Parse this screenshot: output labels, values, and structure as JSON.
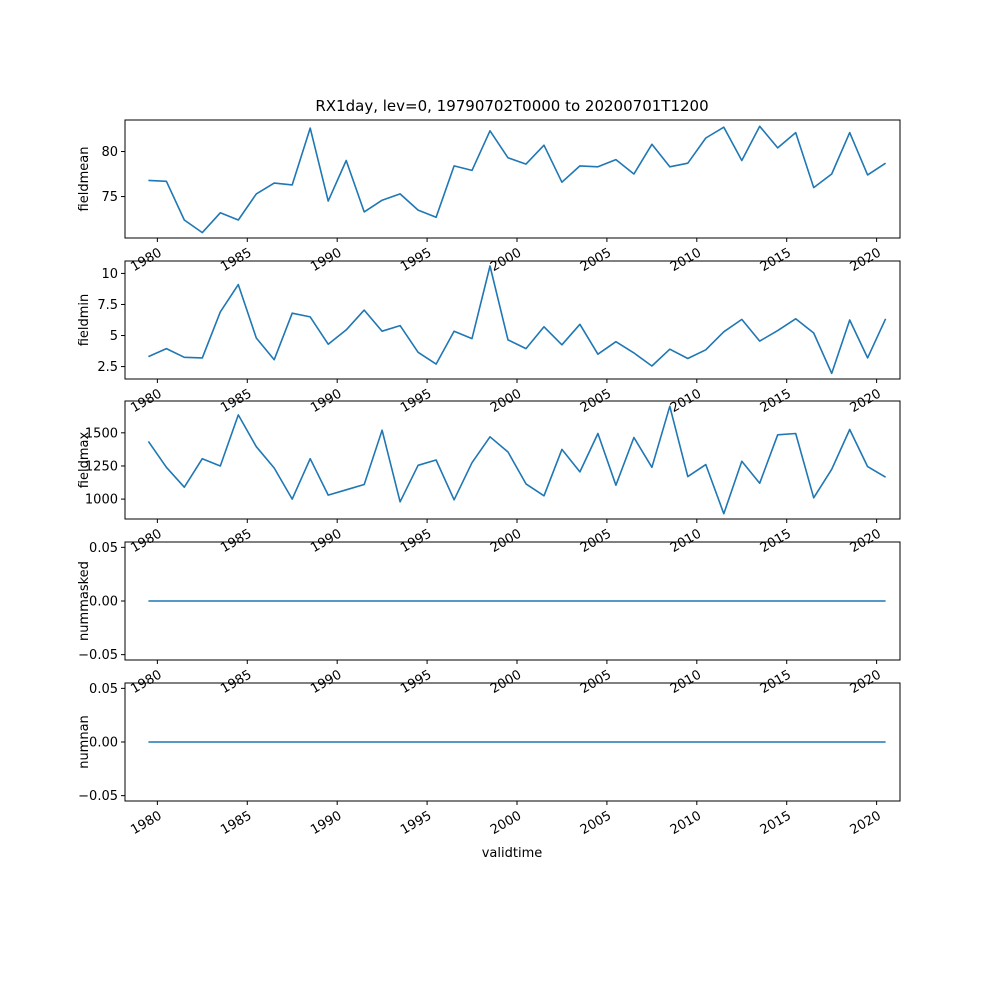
{
  "title": "RX1day, lev=0, 19790702T0000 to 20200701T1200",
  "xlabel": "validtime",
  "x_tick_labels": [
    "1980",
    "1985",
    "1990",
    "1995",
    "2000",
    "2005",
    "2010",
    "2015",
    "2020"
  ],
  "chart_data": [
    {
      "type": "line",
      "ylabel": "fieldmean",
      "color": "#1f77b4",
      "x": [
        1979.5,
        1980.5,
        1981.5,
        1982.5,
        1983.5,
        1984.5,
        1985.5,
        1986.5,
        1987.5,
        1988.5,
        1989.5,
        1990.5,
        1991.5,
        1992.5,
        1993.5,
        1994.5,
        1995.5,
        1996.5,
        1997.5,
        1998.5,
        1999.5,
        2000.5,
        2001.5,
        2002.5,
        2003.5,
        2004.5,
        2005.5,
        2006.5,
        2007.5,
        2008.5,
        2009.5,
        2010.5,
        2011.5,
        2012.5,
        2013.5,
        2014.5,
        2015.5,
        2016.5,
        2017.5,
        2018.5,
        2019.5,
        2020.5
      ],
      "values": [
        76.8,
        76.7,
        72.4,
        71.0,
        73.2,
        72.4,
        75.3,
        76.5,
        76.3,
        82.6,
        74.5,
        79.0,
        73.3,
        74.6,
        75.3,
        73.5,
        72.7,
        78.4,
        77.9,
        82.3,
        79.3,
        78.6,
        80.7,
        76.6,
        78.4,
        78.3,
        79.1,
        77.5,
        80.8,
        78.3,
        78.7,
        81.5,
        82.7,
        79.0,
        82.8,
        80.4,
        82.1,
        76.0,
        77.5,
        82.1,
        77.4,
        78.7
      ],
      "xlim": [
        1978.2,
        2021.3
      ],
      "ylim": [
        70.4,
        83.5
      ],
      "yticks": [
        75,
        80
      ]
    },
    {
      "type": "line",
      "ylabel": "fieldmin",
      "color": "#1f77b4",
      "x": [
        1979.5,
        1980.5,
        1981.5,
        1982.5,
        1983.5,
        1984.5,
        1985.5,
        1986.5,
        1987.5,
        1988.5,
        1989.5,
        1990.5,
        1991.5,
        1992.5,
        1993.5,
        1994.5,
        1995.5,
        1996.5,
        1997.5,
        1998.5,
        1999.5,
        2000.5,
        2001.5,
        2002.5,
        2003.5,
        2004.5,
        2005.5,
        2006.5,
        2007.5,
        2008.5,
        2009.5,
        2010.5,
        2011.5,
        2012.5,
        2013.5,
        2014.5,
        2015.5,
        2016.5,
        2017.5,
        2018.5,
        2019.5,
        2020.5
      ],
      "values": [
        3.3,
        3.95,
        3.25,
        3.2,
        6.9,
        9.1,
        4.8,
        3.05,
        6.8,
        6.5,
        4.3,
        5.45,
        7.05,
        5.35,
        5.8,
        3.65,
        2.7,
        5.35,
        4.75,
        10.6,
        4.65,
        3.95,
        5.7,
        4.25,
        5.9,
        3.5,
        4.5,
        3.6,
        2.55,
        3.9,
        3.15,
        3.85,
        5.3,
        6.3,
        4.55,
        5.4,
        6.35,
        5.2,
        1.95,
        6.25,
        3.2,
        6.35
      ],
      "xlim": [
        1978.2,
        2021.3
      ],
      "ylim": [
        1.5,
        11.0
      ],
      "yticks": [
        2.5,
        5.0,
        7.5,
        10.0
      ]
    },
    {
      "type": "line",
      "ylabel": "fieldmax",
      "color": "#1f77b4",
      "x": [
        1979.5,
        1980.5,
        1981.5,
        1982.5,
        1983.5,
        1984.5,
        1985.5,
        1986.5,
        1987.5,
        1988.5,
        1989.5,
        1990.5,
        1991.5,
        1992.5,
        1993.5,
        1994.5,
        1995.5,
        1996.5,
        1997.5,
        1998.5,
        1999.5,
        2000.5,
        2001.5,
        2002.5,
        2003.5,
        2004.5,
        2005.5,
        2006.5,
        2007.5,
        2008.5,
        2009.5,
        2010.5,
        2011.5,
        2012.5,
        2013.5,
        2014.5,
        2015.5,
        2016.5,
        2017.5,
        2018.5,
        2019.5,
        2020.5
      ],
      "values": [
        1435,
        1240,
        1090,
        1305,
        1250,
        1635,
        1395,
        1235,
        1000,
        1305,
        1030,
        1070,
        1110,
        1520,
        980,
        1255,
        1295,
        995,
        1275,
        1470,
        1355,
        1115,
        1025,
        1375,
        1205,
        1495,
        1105,
        1465,
        1240,
        1700,
        1170,
        1260,
        890,
        1285,
        1120,
        1485,
        1495,
        1010,
        1225,
        1525,
        1245,
        1165
      ],
      "xlim": [
        1978.2,
        2021.3
      ],
      "ylim": [
        850,
        1740
      ],
      "yticks": [
        1000,
        1250,
        1500
      ]
    },
    {
      "type": "line",
      "ylabel": "nummasked",
      "color": "#1f77b4",
      "x": [
        1979.5,
        1980.5,
        1981.5,
        1982.5,
        1983.5,
        1984.5,
        1985.5,
        1986.5,
        1987.5,
        1988.5,
        1989.5,
        1990.5,
        1991.5,
        1992.5,
        1993.5,
        1994.5,
        1995.5,
        1996.5,
        1997.5,
        1998.5,
        1999.5,
        2000.5,
        2001.5,
        2002.5,
        2003.5,
        2004.5,
        2005.5,
        2006.5,
        2007.5,
        2008.5,
        2009.5,
        2010.5,
        2011.5,
        2012.5,
        2013.5,
        2014.5,
        2015.5,
        2016.5,
        2017.5,
        2018.5,
        2019.5,
        2020.5
      ],
      "values": [
        0,
        0,
        0,
        0,
        0,
        0,
        0,
        0,
        0,
        0,
        0,
        0,
        0,
        0,
        0,
        0,
        0,
        0,
        0,
        0,
        0,
        0,
        0,
        0,
        0,
        0,
        0,
        0,
        0,
        0,
        0,
        0,
        0,
        0,
        0,
        0,
        0,
        0,
        0,
        0,
        0,
        0
      ],
      "xlim": [
        1978.2,
        2021.3
      ],
      "ylim": [
        -0.055,
        0.055
      ],
      "yticks": [
        -0.05,
        0.0,
        0.05
      ],
      "ytick_labels": [
        "−0.05",
        "0.00",
        "0.05"
      ]
    },
    {
      "type": "line",
      "ylabel": "numnan",
      "color": "#1f77b4",
      "x": [
        1979.5,
        1980.5,
        1981.5,
        1982.5,
        1983.5,
        1984.5,
        1985.5,
        1986.5,
        1987.5,
        1988.5,
        1989.5,
        1990.5,
        1991.5,
        1992.5,
        1993.5,
        1994.5,
        1995.5,
        1996.5,
        1997.5,
        1998.5,
        1999.5,
        2000.5,
        2001.5,
        2002.5,
        2003.5,
        2004.5,
        2005.5,
        2006.5,
        2007.5,
        2008.5,
        2009.5,
        2010.5,
        2011.5,
        2012.5,
        2013.5,
        2014.5,
        2015.5,
        2016.5,
        2017.5,
        2018.5,
        2019.5,
        2020.5
      ],
      "values": [
        0,
        0,
        0,
        0,
        0,
        0,
        0,
        0,
        0,
        0,
        0,
        0,
        0,
        0,
        0,
        0,
        0,
        0,
        0,
        0,
        0,
        0,
        0,
        0,
        0,
        0,
        0,
        0,
        0,
        0,
        0,
        0,
        0,
        0,
        0,
        0,
        0,
        0,
        0,
        0,
        0,
        0
      ],
      "xlim": [
        1978.2,
        2021.3
      ],
      "ylim": [
        -0.055,
        0.055
      ],
      "yticks": [
        -0.05,
        0.0,
        0.05
      ],
      "ytick_labels": [
        "−0.05",
        "0.00",
        "0.05"
      ]
    }
  ]
}
